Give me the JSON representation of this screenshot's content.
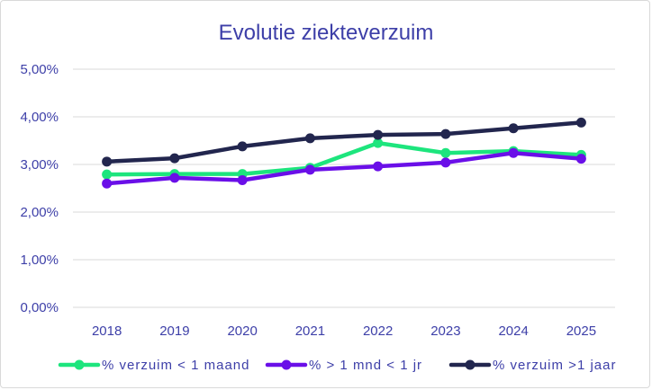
{
  "chart_data": {
    "type": "line",
    "title": "Evolutie ziekteverzuim",
    "xlabel": "",
    "ylabel": "",
    "categories": [
      "2018",
      "2019",
      "2020",
      "2021",
      "2022",
      "2023",
      "2024",
      "2025"
    ],
    "ylim": [
      0,
      5
    ],
    "yticks": [
      "0,00%",
      "1,00%",
      "2,00%",
      "3,00%",
      "4,00%",
      "5,00%"
    ],
    "grid": true,
    "legend_position": "bottom",
    "series": [
      {
        "name": "% verzuim < 1 maand",
        "color": "#1de57d",
        "values": [
          2.79,
          2.8,
          2.8,
          2.93,
          3.45,
          3.24,
          3.28,
          3.2
        ]
      },
      {
        "name": "%  > 1 mnd < 1 jr",
        "color": "#6a0fe8",
        "values": [
          2.6,
          2.72,
          2.67,
          2.89,
          2.96,
          3.04,
          3.24,
          3.12
        ]
      },
      {
        "name": "% verzuim >1 jaar",
        "color": "#22264e",
        "values": [
          3.06,
          3.13,
          3.38,
          3.55,
          3.62,
          3.64,
          3.76,
          3.88
        ]
      }
    ]
  }
}
